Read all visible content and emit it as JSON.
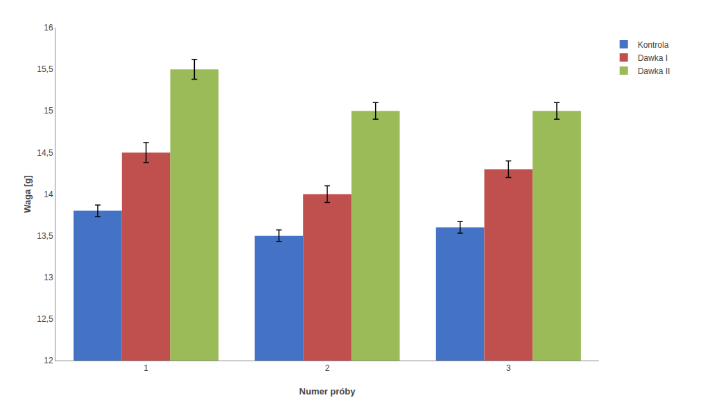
{
  "chart_data": {
    "type": "bar",
    "categories": [
      "1",
      "2",
      "3"
    ],
    "series": [
      {
        "name": "Kontrola",
        "color": "#4472C4",
        "values": [
          13.8,
          13.5,
          13.6
        ],
        "errors": [
          0.07,
          0.07,
          0.07
        ]
      },
      {
        "name": "Dawka I",
        "color": "#C0504D",
        "values": [
          14.5,
          14.0,
          14.3
        ],
        "errors": [
          0.12,
          0.1,
          0.1
        ]
      },
      {
        "name": "Dawka II",
        "color": "#9BBB59",
        "values": [
          15.5,
          15.0,
          15.0
        ],
        "errors": [
          0.12,
          0.1,
          0.1
        ]
      }
    ],
    "xlabel": "Numer próby",
    "ylabel": "Waga [g]",
    "ylim": [
      12,
      16
    ],
    "yticks": [
      12,
      {
        "value": 12.5,
        "label": "12,5"
      },
      13,
      {
        "value": 13.5,
        "label": "13,5"
      },
      14,
      {
        "value": 14.5,
        "label": "14,5"
      },
      15,
      {
        "value": 15.5,
        "label": "15,5"
      },
      16
    ],
    "grid": false,
    "legend": "right"
  }
}
